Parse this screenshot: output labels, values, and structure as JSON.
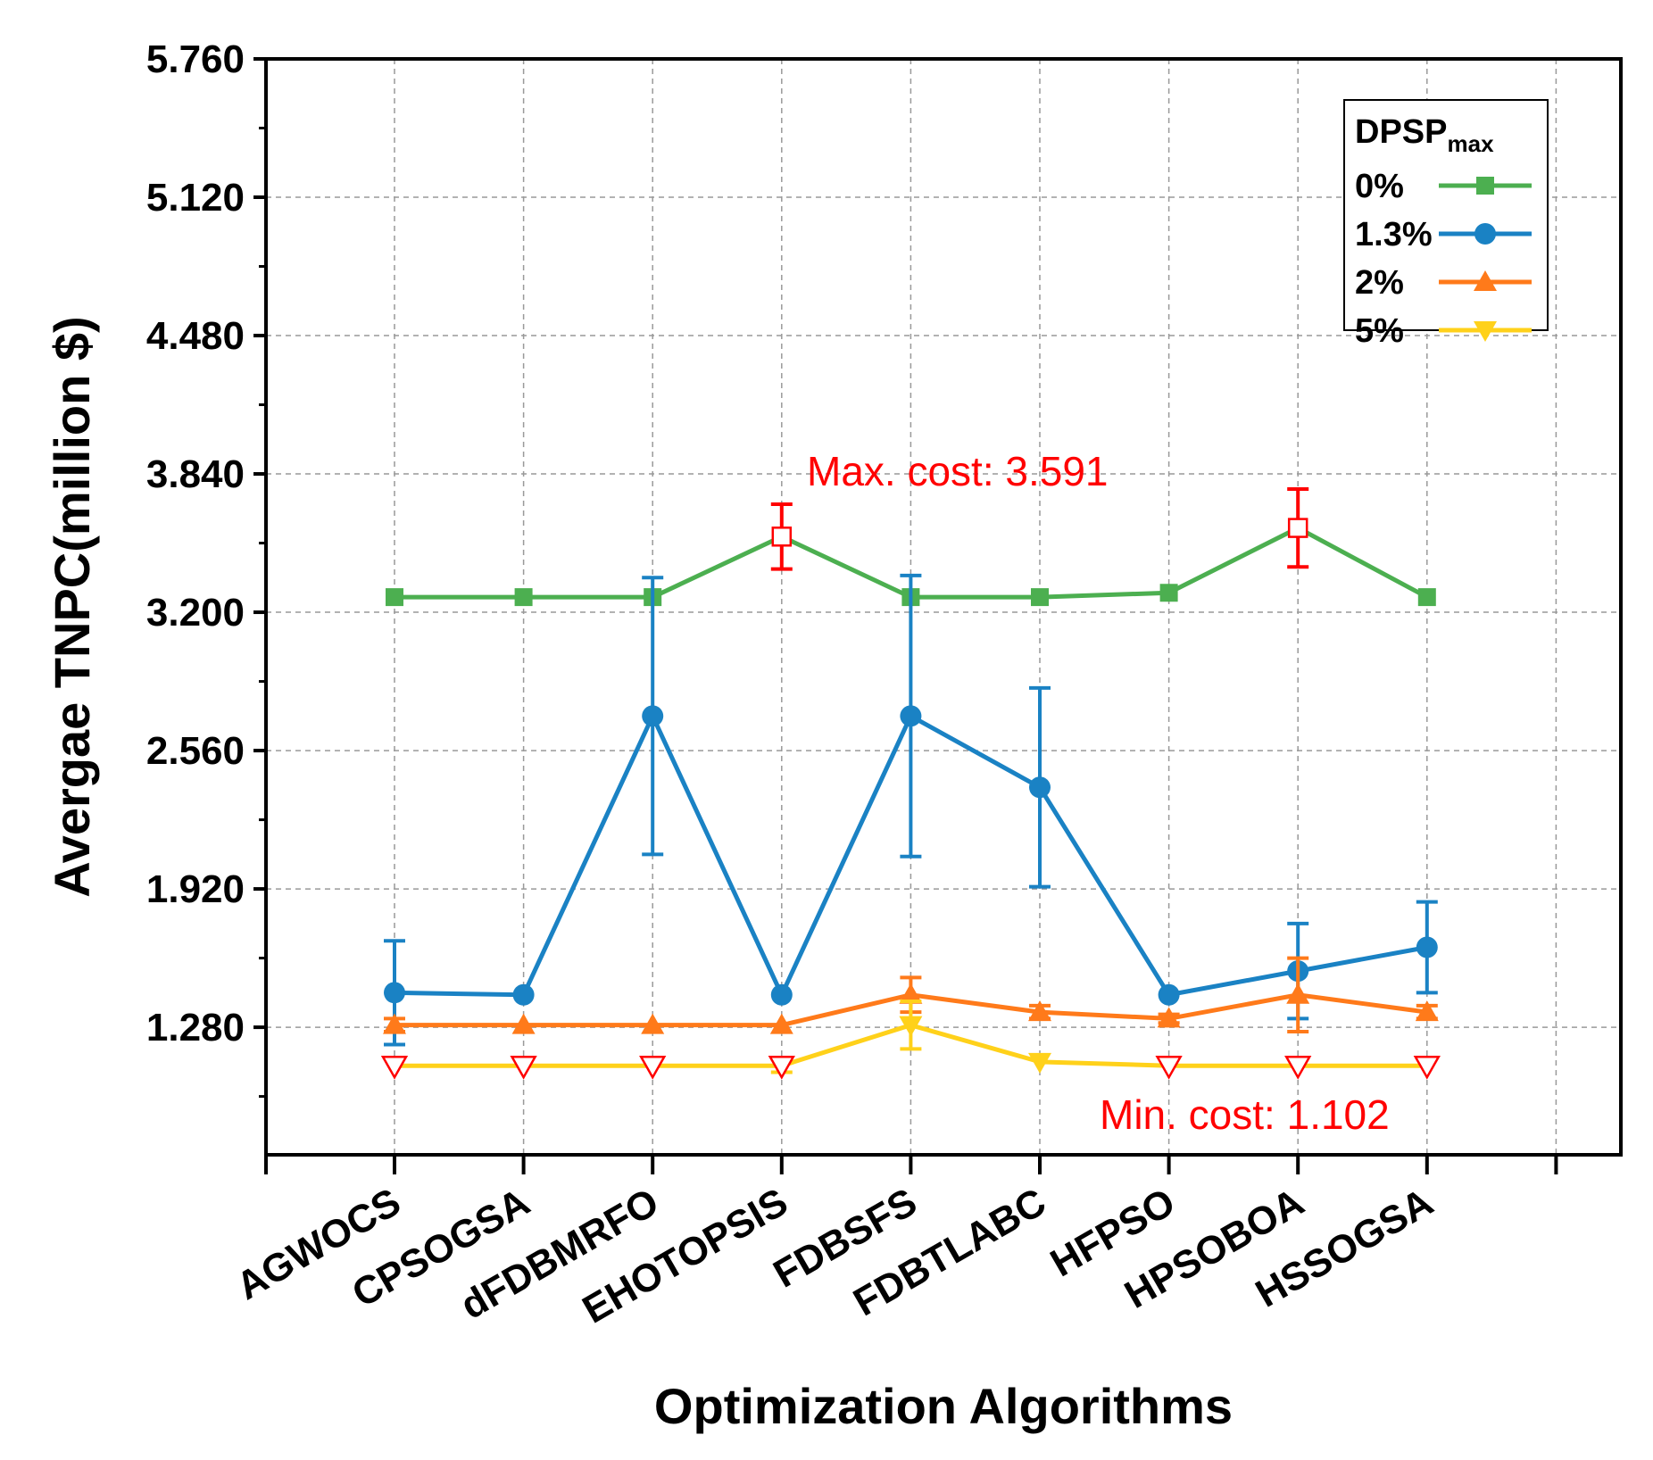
{
  "chart_data": {
    "type": "line",
    "title": "",
    "xlabel": "Optimization Algorithms",
    "ylabel": "Avergae TNPC(million $)",
    "ylim": [
      0.69,
      5.76
    ],
    "yticks": [
      "1.280",
      "1.920",
      "2.560",
      "3.200",
      "3.840",
      "4.480",
      "5.120",
      "5.760"
    ],
    "ytick_values": [
      1.28,
      1.92,
      2.56,
      3.2,
      3.84,
      4.48,
      5.12,
      5.76
    ],
    "categories": [
      "AGWOCS",
      "CPSOGSA",
      "dFDBMRFO",
      "EHOTOPSIS",
      "FDBSFS",
      "FDBTLABC",
      "HFPSO",
      "HPSOBOA",
      "HSSOGSA"
    ],
    "grid": true,
    "legend": {
      "title": "DPSP",
      "title_sub": "max",
      "position": "top-right"
    },
    "series": [
      {
        "name": "0%",
        "color": "#4caf50",
        "marker": "square",
        "values": [
          3.27,
          3.27,
          3.27,
          3.55,
          3.27,
          3.27,
          3.29,
          3.59,
          3.27
        ],
        "errors": [
          null,
          null,
          null,
          0.15,
          null,
          null,
          null,
          0.18,
          null
        ]
      },
      {
        "name": "1.3%",
        "color": "#1a82c4",
        "marker": "circle",
        "values": [
          1.44,
          1.43,
          2.72,
          1.43,
          2.72,
          2.39,
          1.43,
          1.54,
          1.65
        ],
        "errors": [
          0.24,
          null,
          0.64,
          null,
          0.65,
          0.46,
          null,
          0.22,
          0.21
        ]
      },
      {
        "name": "2%",
        "color": "#ff7a1a",
        "marker": "triangle-up",
        "values": [
          1.29,
          1.29,
          1.29,
          1.29,
          1.43,
          1.35,
          1.32,
          1.43,
          1.35
        ],
        "errors": [
          0.03,
          null,
          null,
          null,
          0.08,
          0.03,
          0.02,
          0.17,
          0.03
        ]
      },
      {
        "name": "5%",
        "color": "#ffd11a",
        "marker": "triangle-down",
        "values": [
          1.102,
          1.102,
          1.102,
          1.102,
          1.29,
          1.12,
          1.102,
          1.102,
          1.102
        ],
        "errors": [
          null,
          null,
          null,
          0.03,
          0.11,
          null,
          null,
          null,
          null
        ]
      }
    ],
    "annotations": [
      "Max. cost: 3.591",
      "Min. cost: 1.102"
    ]
  }
}
